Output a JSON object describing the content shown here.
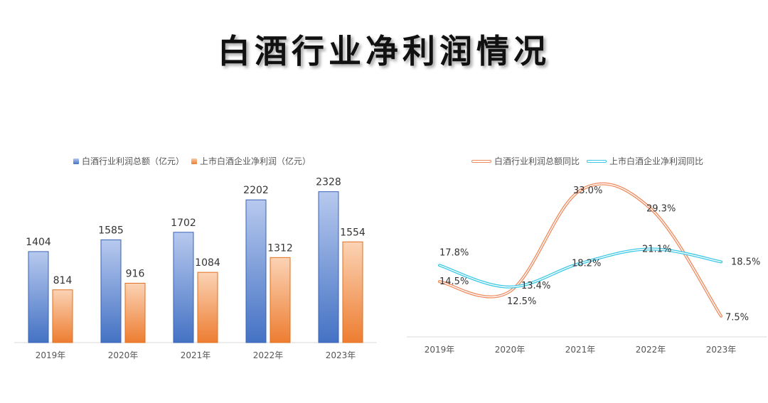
{
  "title": "白酒行业净利润情况",
  "chart_data": [
    {
      "type": "bar",
      "categories": [
        "2019年",
        "2020年",
        "2021年",
        "2022年",
        "2023年"
      ],
      "series": [
        {
          "name": "白酒行业利润总额（亿元）",
          "values": [
            1404,
            1585,
            1702,
            2202,
            2328
          ],
          "color": "#4472c4"
        },
        {
          "name": "上市白酒企业净利润（亿元）",
          "values": [
            814,
            916,
            1084,
            1312,
            1554
          ],
          "color": "#ed7d31"
        }
      ],
      "ylim": [
        0,
        2500
      ],
      "legend": "top",
      "grid": false
    },
    {
      "type": "line",
      "categories": [
        "2019年",
        "2020年",
        "2021年",
        "2022年",
        "2023年"
      ],
      "series": [
        {
          "name": "白酒行业利润总额同比",
          "values": [
            14.5,
            12.5,
            33.0,
            29.3,
            7.5
          ],
          "labels": [
            "14.5%",
            "12.5%",
            "33.0%",
            "29.3%",
            "7.5%"
          ],
          "color": "#f08a5d"
        },
        {
          "name": "上市白酒企业净利润同比",
          "values": [
            17.8,
            13.4,
            18.2,
            21.1,
            18.5
          ],
          "labels": [
            "17.8%",
            "13.4%",
            "18.2%",
            "21.1%",
            "18.5%"
          ],
          "color": "#3cc8e6"
        }
      ],
      "ylim": [
        5,
        35
      ],
      "legend": "top",
      "grid": false
    }
  ]
}
